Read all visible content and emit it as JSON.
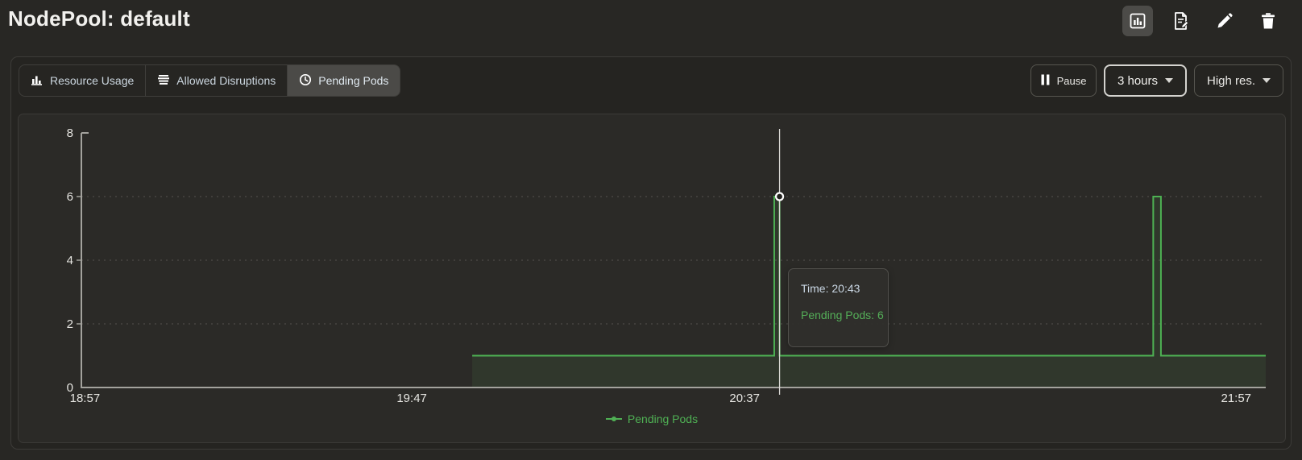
{
  "header": {
    "title": "NodePool: default",
    "actions": [
      {
        "name": "metrics",
        "icon": "bar-chart-icon",
        "active": true
      },
      {
        "name": "logs",
        "icon": "document-edit-icon",
        "active": false
      },
      {
        "name": "edit",
        "icon": "pencil-icon",
        "active": false
      },
      {
        "name": "delete",
        "icon": "trash-icon",
        "active": false
      }
    ]
  },
  "toolbar": {
    "tabs": [
      {
        "label": "Resource Usage",
        "icon": "bar-chart-icon",
        "active": false
      },
      {
        "label": "Allowed Disruptions",
        "icon": "disruptions-icon",
        "active": false
      },
      {
        "label": "Pending Pods",
        "icon": "clock-icon",
        "active": true
      }
    ],
    "pause_label": "Pause",
    "time_range": "3 hours",
    "resolution": "High res."
  },
  "colors": {
    "series_green": "#4eb153",
    "area_fill": "rgba(94,176,90,0.10)",
    "axis": "#a3a29d",
    "gridline": "#55544f",
    "crosshair": "#d8d7d3",
    "tick_label": "#e6e5e1",
    "tooltip_time_text": "#c9d6e3",
    "tooltip_value_text": "#54ae58"
  },
  "chart_data": {
    "type": "line",
    "step": true,
    "title": "",
    "xlabel": "",
    "ylabel": "",
    "ylim": [
      0,
      8
    ],
    "y_ticks": [
      0,
      2,
      4,
      6,
      8
    ],
    "grid_y": [
      2,
      4,
      6
    ],
    "x_ticks": [
      {
        "label": "18:57",
        "pos": 0.003
      },
      {
        "label": "19:47",
        "pos": 0.279
      },
      {
        "label": "20:37",
        "pos": 0.56
      },
      {
        "label": "21:57",
        "pos": 0.975
      }
    ],
    "series": [
      {
        "name": "Pending Pods",
        "points": [
          {
            "time": "19:56",
            "value": 1,
            "pos": 0.33
          },
          {
            "time": "20:43",
            "value": 1,
            "pos": 0.585
          },
          {
            "time": "20:43",
            "value": 6,
            "pos": 0.585
          },
          {
            "time": "20:44",
            "value": 6,
            "pos": 0.5895
          },
          {
            "time": "20:44",
            "value": 1,
            "pos": 0.5895
          },
          {
            "time": "21:41",
            "value": 1,
            "pos": 0.905
          },
          {
            "time": "21:41",
            "value": 6,
            "pos": 0.905
          },
          {
            "time": "21:42",
            "value": 6,
            "pos": 0.9115
          },
          {
            "time": "21:42",
            "value": 1,
            "pos": 0.9115
          },
          {
            "time": "22:02",
            "value": 1,
            "pos": 1.0
          }
        ]
      }
    ],
    "crosshair": {
      "pos": 0.5895,
      "value": 6
    },
    "tooltip": {
      "time_label": "Time: 20:43",
      "value_label": "Pending Pods: 6"
    },
    "legend": {
      "label": "Pending Pods",
      "position": "bottom"
    }
  }
}
